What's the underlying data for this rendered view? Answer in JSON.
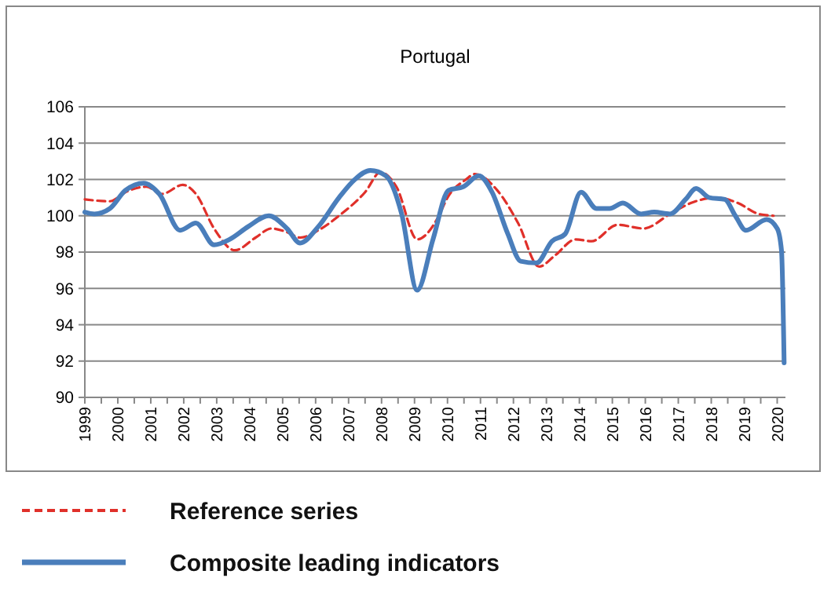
{
  "chart_data": {
    "type": "line",
    "title": "Portugal",
    "xlim": [
      1999,
      2020.25
    ],
    "xticks": [
      1999,
      {
        "value": 1999.5,
        "label": null
      },
      2000,
      {
        "value": 2000.5,
        "label": null
      },
      2001,
      {
        "value": 2001.5,
        "label": null
      },
      2002,
      {
        "value": 2002.5,
        "label": null
      },
      2003,
      {
        "value": 2003.5,
        "label": null
      },
      2004,
      {
        "value": 2004.5,
        "label": null
      },
      2005,
      {
        "value": 2005.5,
        "label": null
      },
      2006,
      {
        "value": 2006.5,
        "label": null
      },
      2007,
      {
        "value": 2007.5,
        "label": null
      },
      2008,
      {
        "value": 2008.5,
        "label": null
      },
      2009,
      {
        "value": 2009.5,
        "label": null
      },
      2010,
      {
        "value": 2010.5,
        "label": null
      },
      2011,
      {
        "value": 2011.5,
        "label": null
      },
      2012,
      {
        "value": 2012.5,
        "label": null
      },
      2013,
      {
        "value": 2013.5,
        "label": null
      },
      2014,
      {
        "value": 2014.5,
        "label": null
      },
      2015,
      {
        "value": 2015.5,
        "label": null
      },
      2016,
      {
        "value": 2016.5,
        "label": null
      },
      2017,
      {
        "value": 2017.5,
        "label": null
      },
      2018,
      {
        "value": 2018.5,
        "label": null
      },
      2019,
      {
        "value": 2019.5,
        "label": null
      },
      2020
    ],
    "ylim": [
      90,
      106
    ],
    "yticks": [
      90,
      92,
      94,
      96,
      98,
      100,
      102,
      104,
      106
    ],
    "grid": "y",
    "legend": "bottom",
    "series": [
      {
        "name": "Reference series",
        "color": "#e0302a",
        "line_style": "dashed",
        "x": [
          1999,
          1999.76,
          2000.23,
          2000.86,
          2001.34,
          2001.97,
          2002.37,
          2002.92,
          2003.55,
          2004.18,
          2004.66,
          2005.13,
          2005.53,
          2006.08,
          2006.71,
          2007.5,
          2007.97,
          2008.45,
          2009.08,
          2009.71,
          2010.0,
          2010.56,
          2010.83,
          2011.51,
          2012.14,
          2012.78,
          2013.25,
          2013.89,
          2014.37,
          2015.16,
          2015.95,
          2016.75,
          2017.38,
          2018.17,
          2018.81,
          2019.44,
          2019.89
        ],
        "values": [
          100.9,
          100.8,
          101.3,
          101.6,
          101.2,
          101.7,
          101.2,
          99.3,
          98.1,
          98.8,
          99.3,
          99.1,
          98.8,
          99.2,
          100.0,
          101.3,
          102.4,
          101.6,
          98.7,
          99.9,
          101.0,
          102.0,
          102.3,
          101.4,
          99.6,
          97.2,
          97.8,
          98.7,
          98.6,
          99.5,
          99.3,
          100.1,
          100.7,
          101.0,
          100.7,
          100.1,
          100.0
        ]
      },
      {
        "name": "Composite leading indicators",
        "color": "#4a7ebb",
        "line_style": "solid",
        "x": [
          1999,
          1999.29,
          1999.76,
          2000.23,
          2000.79,
          2001.26,
          2001.89,
          2002.37,
          2002.92,
          2003.39,
          2003.95,
          2004.58,
          2005.13,
          2005.53,
          2006.08,
          2006.71,
          2007.19,
          2007.66,
          2008.13,
          2008.61,
          2009.08,
          2009.56,
          2010.03,
          2010.48,
          2010.95,
          2011.35,
          2011.83,
          2012.22,
          2012.7,
          2013.17,
          2013.57,
          2014.05,
          2014.52,
          2014.92,
          2015.32,
          2015.87,
          2016.27,
          2016.75,
          2017.22,
          2017.54,
          2017.94,
          2018.41,
          2018.73,
          2019.05,
          2019.68,
          2020.0,
          2020.13,
          2020.21
        ],
        "values": [
          100.2,
          100.1,
          100.4,
          101.4,
          101.8,
          101.2,
          99.2,
          99.6,
          98.4,
          98.7,
          99.4,
          100.0,
          99.3,
          98.5,
          99.4,
          101.0,
          102.0,
          102.5,
          102.2,
          100.1,
          95.9,
          98.7,
          101.4,
          101.6,
          102.2,
          101.3,
          99.0,
          97.5,
          97.4,
          98.6,
          99.0,
          101.3,
          100.4,
          100.4,
          100.7,
          100.1,
          100.2,
          100.1,
          100.9,
          101.5,
          101.0,
          100.9,
          100.0,
          99.2,
          99.8,
          99.3,
          98.1,
          91.9
        ]
      }
    ]
  }
}
